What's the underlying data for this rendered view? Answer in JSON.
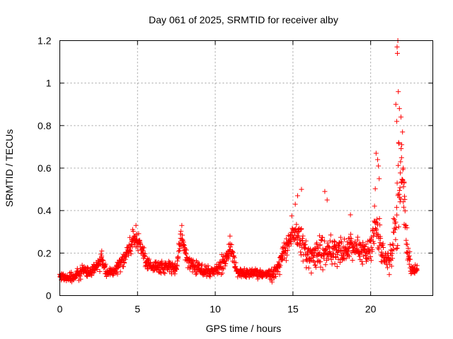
{
  "chart_data": {
    "type": "scatter",
    "title": "Day 061 of 2025, SRMTID for receiver alby",
    "xlabel": "GPS time / hours",
    "ylabel": "SRMTID / TECUs",
    "xlim": [
      0,
      24
    ],
    "ylim": [
      0,
      1.2
    ],
    "xticks": [
      "0",
      "5",
      "10",
      "15",
      "20"
    ],
    "xtick_values": [
      0,
      5,
      10,
      15,
      20
    ],
    "yticks": [
      "0",
      "0.2",
      "0.4",
      "0.6",
      "0.8",
      "1",
      "1.2"
    ],
    "ytick_values": [
      0,
      0.2,
      0.4,
      0.6,
      0.8,
      1.0,
      1.2
    ],
    "grid": true,
    "marker": "+",
    "color": "#ff0000",
    "series": [
      {
        "name": "SRMTID",
        "profile": [
          [
            0.0,
            0.09,
            0.02
          ],
          [
            0.5,
            0.08,
            0.02
          ],
          [
            1.0,
            0.09,
            0.02
          ],
          [
            1.5,
            0.12,
            0.03
          ],
          [
            2.0,
            0.11,
            0.02
          ],
          [
            2.7,
            0.17,
            0.04
          ],
          [
            3.0,
            0.11,
            0.02
          ],
          [
            3.6,
            0.12,
            0.02
          ],
          [
            4.0,
            0.16,
            0.03
          ],
          [
            4.5,
            0.22,
            0.04
          ],
          [
            4.8,
            0.27,
            0.04
          ],
          [
            5.2,
            0.23,
            0.04
          ],
          [
            5.6,
            0.16,
            0.03
          ],
          [
            6.0,
            0.13,
            0.03
          ],
          [
            6.5,
            0.14,
            0.03
          ],
          [
            7.0,
            0.13,
            0.03
          ],
          [
            7.5,
            0.13,
            0.03
          ],
          [
            7.8,
            0.28,
            0.04
          ],
          [
            8.2,
            0.17,
            0.03
          ],
          [
            8.7,
            0.13,
            0.03
          ],
          [
            9.2,
            0.12,
            0.03
          ],
          [
            9.7,
            0.11,
            0.02
          ],
          [
            10.2,
            0.12,
            0.03
          ],
          [
            10.7,
            0.17,
            0.04
          ],
          [
            11.0,
            0.22,
            0.04
          ],
          [
            11.4,
            0.11,
            0.02
          ],
          [
            12.0,
            0.1,
            0.02
          ],
          [
            12.5,
            0.11,
            0.02
          ],
          [
            13.0,
            0.1,
            0.02
          ],
          [
            13.6,
            0.1,
            0.03
          ],
          [
            14.0,
            0.12,
            0.03
          ],
          [
            14.5,
            0.22,
            0.05
          ],
          [
            15.0,
            0.3,
            0.07
          ],
          [
            15.5,
            0.25,
            0.07
          ],
          [
            16.0,
            0.18,
            0.06
          ],
          [
            16.5,
            0.2,
            0.07
          ],
          [
            17.0,
            0.22,
            0.07
          ],
          [
            17.5,
            0.2,
            0.06
          ],
          [
            18.0,
            0.21,
            0.06
          ],
          [
            18.5,
            0.23,
            0.06
          ],
          [
            19.0,
            0.22,
            0.06
          ],
          [
            19.5,
            0.2,
            0.06
          ],
          [
            20.0,
            0.22,
            0.07
          ],
          [
            20.3,
            0.35,
            0.12
          ],
          [
            20.6,
            0.25,
            0.08
          ],
          [
            21.0,
            0.16,
            0.05
          ],
          [
            21.4,
            0.18,
            0.06
          ],
          [
            21.7,
            0.45,
            0.25
          ],
          [
            22.0,
            0.55,
            0.2
          ],
          [
            22.3,
            0.25,
            0.1
          ],
          [
            22.6,
            0.12,
            0.03
          ],
          [
            22.9,
            0.12,
            0.03
          ]
        ],
        "highlights": [
          [
            21.75,
            1.2
          ],
          [
            21.7,
            1.17
          ],
          [
            21.72,
            1.14
          ],
          [
            21.78,
            0.96
          ],
          [
            21.62,
            0.9
          ],
          [
            21.85,
            0.88
          ],
          [
            21.95,
            0.84
          ],
          [
            21.68,
            0.82
          ],
          [
            22.05,
            0.77
          ],
          [
            21.8,
            0.72
          ],
          [
            22.0,
            0.71
          ],
          [
            20.35,
            0.67
          ],
          [
            20.45,
            0.64
          ],
          [
            20.5,
            0.61
          ],
          [
            22.1,
            0.6
          ],
          [
            20.55,
            0.55
          ],
          [
            22.15,
            0.53
          ],
          [
            15.55,
            0.5
          ],
          [
            17.05,
            0.49
          ],
          [
            15.3,
            0.47
          ],
          [
            17.2,
            0.45
          ],
          [
            15.15,
            0.43
          ],
          [
            18.7,
            0.38
          ],
          [
            4.9,
            0.33
          ],
          [
            7.85,
            0.33
          ],
          [
            10.95,
            0.28
          ],
          [
            2.7,
            0.21
          ]
        ],
        "x_end": 23.0,
        "count": 1400
      }
    ]
  }
}
